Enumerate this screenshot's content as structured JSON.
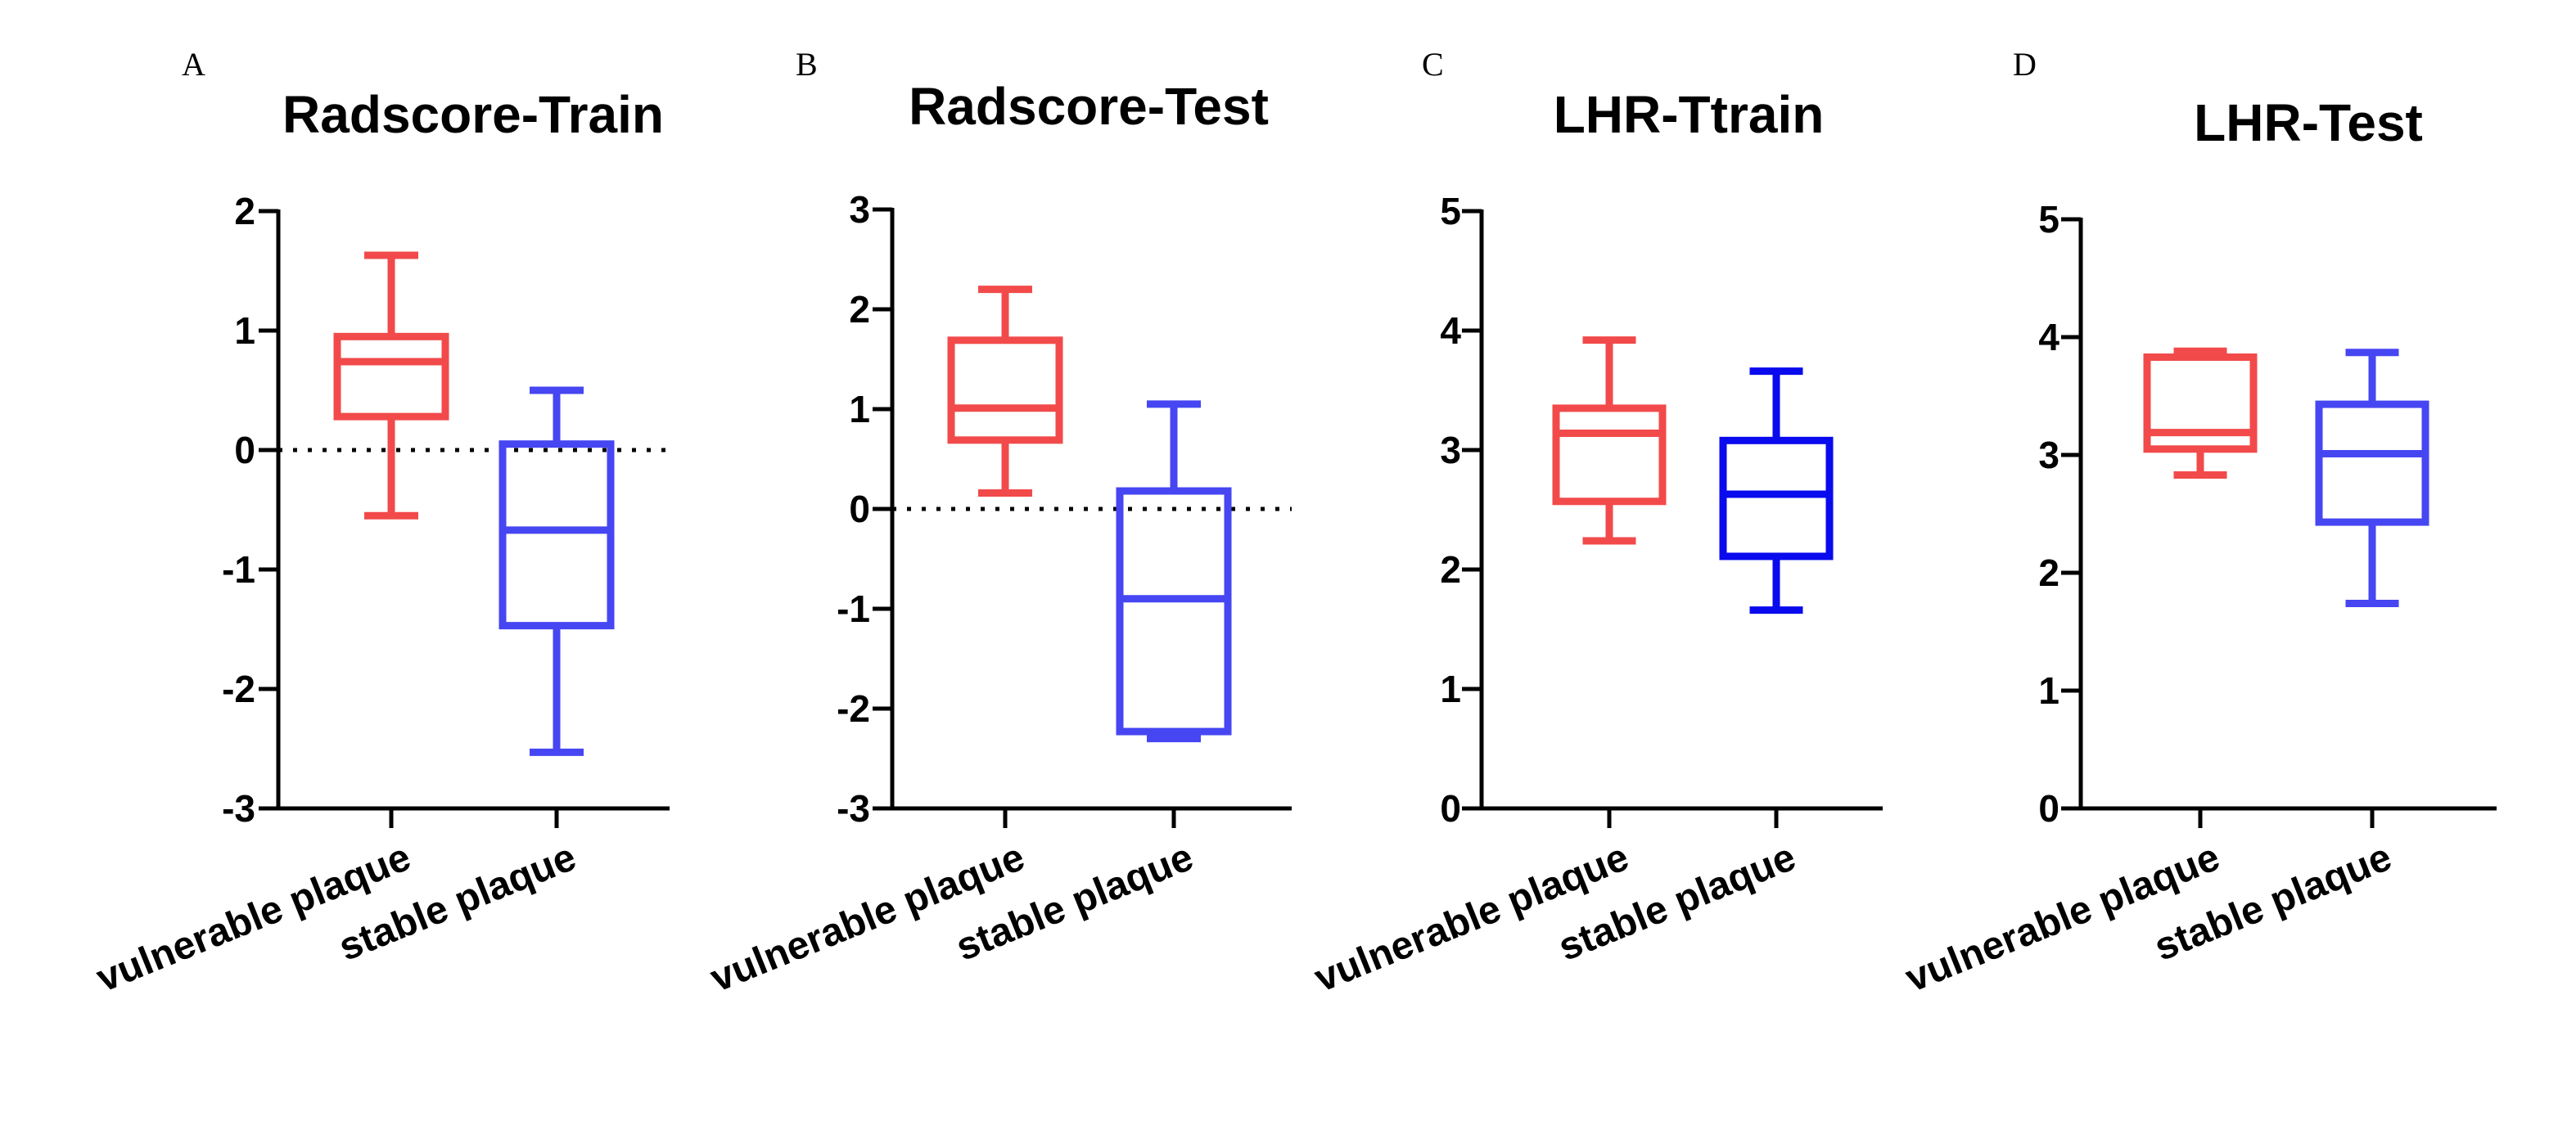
{
  "chart_data": [
    {
      "type": "box",
      "letter": "A",
      "title": "Radscore-Train",
      "ylim": [
        -3,
        2
      ],
      "yticks": [
        2,
        1,
        0,
        -1,
        -2,
        -3
      ],
      "ytick_labels": [
        "2",
        "1",
        "0",
        "-1",
        "-2",
        "-3"
      ],
      "reference_line": 0,
      "categories": [
        "vulnerable plaque",
        "stable plaque"
      ],
      "series": [
        {
          "name": "vulnerable plaque",
          "color": "#f24a4a",
          "min": -0.55,
          "q1": 0.28,
          "median": 0.74,
          "q3": 0.95,
          "max": 1.63
        },
        {
          "name": "stable plaque",
          "color": "#4646f2",
          "min": -2.53,
          "q1": -1.47,
          "median": -0.67,
          "q3": 0.05,
          "max": 0.5
        }
      ]
    },
    {
      "type": "box",
      "letter": "B",
      "title": "Radscore-Test",
      "ylim": [
        -3,
        3
      ],
      "yticks": [
        3,
        2,
        1,
        0,
        -1,
        -2,
        -3
      ],
      "ytick_labels": [
        "3",
        "2",
        "1",
        "0",
        "-1",
        "-2",
        "-3"
      ],
      "reference_line": 0,
      "categories": [
        "vulnerable plaque",
        "stable plaque"
      ],
      "series": [
        {
          "name": "vulnerable plaque",
          "color": "#f24a4a",
          "min": 0.16,
          "q1": 0.69,
          "median": 1.01,
          "q3": 1.69,
          "max": 2.2
        },
        {
          "name": "stable plaque",
          "color": "#4646f2",
          "min": -2.3,
          "q1": -2.23,
          "median": -0.9,
          "q3": 0.18,
          "max": 1.05
        }
      ]
    },
    {
      "type": "box",
      "letter": "C",
      "title": "LHR-Ttrain",
      "ylim": [
        0,
        5
      ],
      "yticks": [
        5,
        4,
        3,
        2,
        1,
        0
      ],
      "ytick_labels": [
        "5",
        "4",
        "3",
        "2",
        "1",
        "0"
      ],
      "categories": [
        "vulnerable plaque",
        "stable plaque"
      ],
      "series": [
        {
          "name": "vulnerable plaque",
          "color": "#f24a4a",
          "min": 2.24,
          "q1": 2.57,
          "median": 3.14,
          "q3": 3.35,
          "max": 3.92
        },
        {
          "name": "stable plaque",
          "color": "#0a0aee",
          "min": 1.66,
          "q1": 2.11,
          "median": 2.63,
          "q3": 3.08,
          "max": 3.66
        }
      ]
    },
    {
      "type": "box",
      "letter": "D",
      "title": "LHR-Test",
      "ylim": [
        0,
        5
      ],
      "yticks": [
        5,
        4,
        3,
        2,
        1,
        0
      ],
      "ytick_labels": [
        "5",
        "4",
        "3",
        "2",
        "1",
        "0"
      ],
      "categories": [
        "vulnerable plaque",
        "stable plaque"
      ],
      "series": [
        {
          "name": "vulnerable plaque",
          "color": "#f24a4a",
          "min": 2.83,
          "q1": 3.05,
          "median": 3.19,
          "q3": 3.83,
          "max": 3.88
        },
        {
          "name": "stable plaque",
          "color": "#4646f2",
          "min": 1.74,
          "q1": 2.43,
          "median": 3.01,
          "q3": 3.43,
          "max": 3.87
        }
      ]
    }
  ]
}
